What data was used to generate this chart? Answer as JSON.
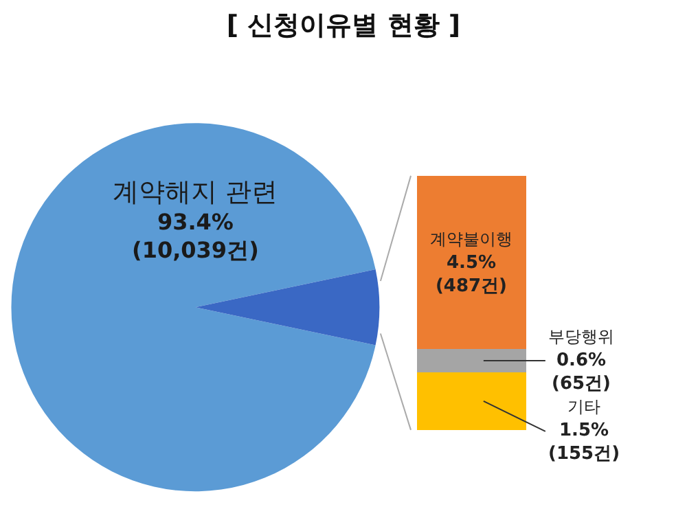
{
  "chart_data": [
    {
      "type": "pie",
      "title": "[ 신청이유별 현황 ]",
      "categories": [
        "계약해지 관련",
        null
      ],
      "values": [
        93.4,
        6.6
      ],
      "colors": [
        "#5b9bd5",
        "#3a68c4"
      ],
      "value_labels": [
        "93.4%\n(10,039건)",
        null
      ]
    },
    {
      "type": "bar",
      "stacked": true,
      "categories": [
        null
      ],
      "series": [
        {
          "name": "기타",
          "color": "#ffc000",
          "values": [
            1.5
          ],
          "value_labels": [
            "1.5%\n(155건)"
          ]
        },
        {
          "name": "부당행위",
          "color": "#a5a5a5",
          "values": [
            0.6
          ],
          "value_labels": [
            "0.6%\n(65건)"
          ]
        },
        {
          "name": "계약불이행",
          "color": "#ed7d31",
          "values": [
            4.5
          ],
          "value_labels": [
            "4.5%\n(487건)"
          ]
        }
      ]
    }
  ]
}
